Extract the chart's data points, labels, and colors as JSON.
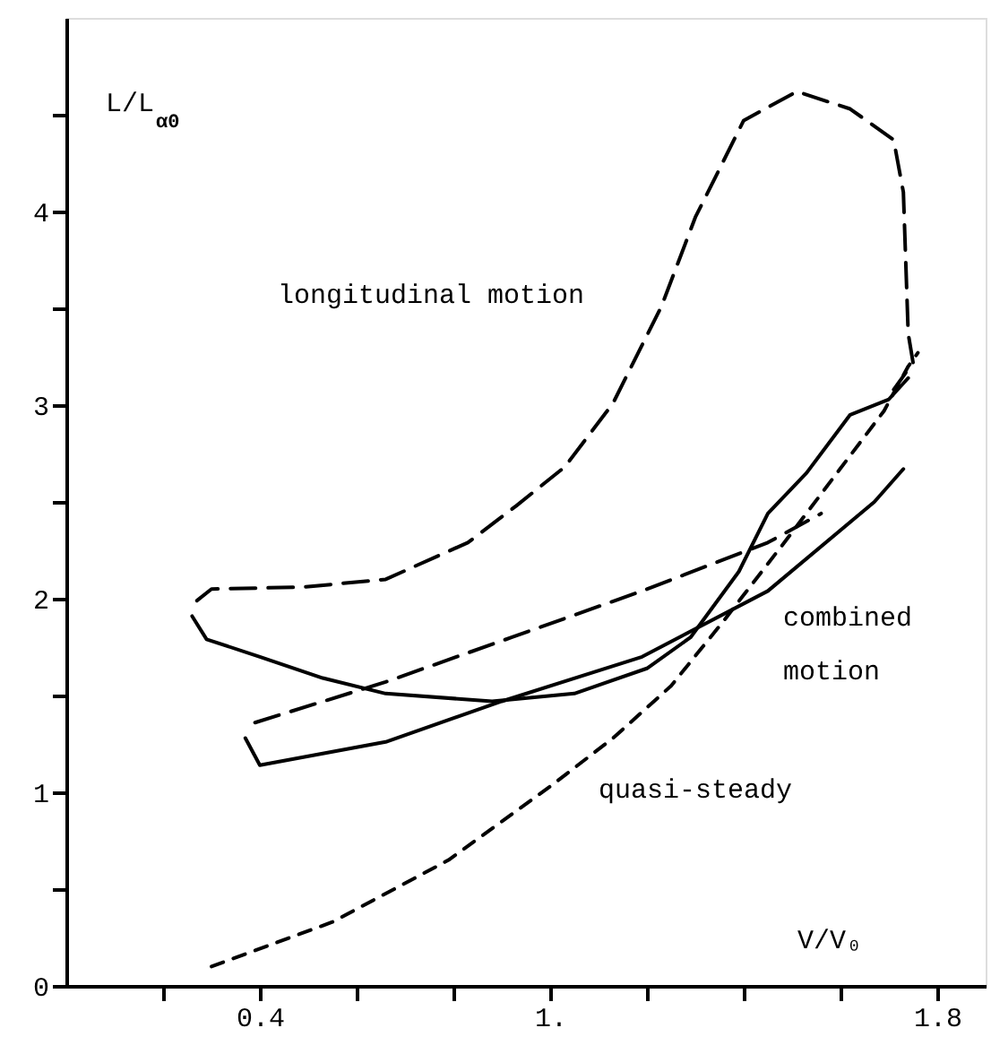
{
  "chart_data": {
    "type": "line",
    "xlabel": "V/V₀",
    "ylabel": "L/L$_{α0}$",
    "xlim": [
      0,
      1.9
    ],
    "ylim": [
      0,
      5.0
    ],
    "xticks": [
      {
        "value": 0.2,
        "label": null
      },
      0.4,
      {
        "value": 0.6,
        "label": null
      },
      {
        "value": 0.8,
        "label": null
      },
      {
        "value": 1.0,
        "label": "1."
      },
      {
        "value": 1.2,
        "label": null
      },
      {
        "value": 1.4,
        "label": null
      },
      {
        "value": 1.6,
        "label": null
      },
      1.8
    ],
    "yticks": [
      0,
      {
        "value": 0.5,
        "label": null
      },
      1,
      {
        "value": 1.5,
        "label": null
      },
      2,
      {
        "value": 2.5,
        "label": null
      },
      3,
      {
        "value": 3.5,
        "label": null
      },
      4,
      {
        "value": 4.5,
        "label": null
      }
    ],
    "grid": false,
    "series": [
      {
        "color": "#000000",
        "line_style": "dashed",
        "x": [
          0.27,
          0.3,
          0.49,
          0.66,
          0.83,
          0.93,
          1.03,
          1.13,
          1.23,
          1.3,
          1.4,
          1.51,
          1.62,
          1.71,
          1.73,
          1.74,
          1.75,
          1.71
        ],
        "values": [
          1.99,
          2.05,
          2.06,
          2.1,
          2.29,
          2.48,
          2.68,
          3.01,
          3.51,
          3.97,
          4.47,
          4.62,
          4.53,
          4.37,
          4.1,
          3.37,
          3.22,
          3.08
        ]
      },
      {
        "color": "#000000",
        "line_style": "dashed",
        "x": [
          0.39,
          0.66,
          0.92,
          1.19,
          1.45,
          1.56
        ],
        "values": [
          1.36,
          1.57,
          1.8,
          2.04,
          2.29,
          2.44
        ]
      },
      {
        "color": "#000000",
        "line_style": "dotted",
        "x": [
          0.3,
          0.55,
          0.79,
          1.0,
          1.13,
          1.25,
          1.36,
          1.49,
          1.69,
          1.74,
          1.76
        ],
        "values": [
          0.1,
          0.33,
          0.65,
          1.03,
          1.28,
          1.55,
          1.89,
          2.31,
          2.97,
          3.2,
          3.27
        ]
      },
      {
        "color": "#000000",
        "line_style": "solid",
        "x": [
          0.26,
          0.29,
          0.4,
          0.53,
          0.66,
          0.88,
          1.05,
          1.2,
          1.29,
          1.39,
          1.45,
          1.53,
          1.62,
          1.7,
          1.74
        ],
        "values": [
          1.91,
          1.79,
          1.7,
          1.59,
          1.51,
          1.47,
          1.51,
          1.64,
          1.8,
          2.14,
          2.44,
          2.65,
          2.95,
          3.03,
          3.14
        ]
      },
      {
        "color": "#000000",
        "line_style": "solid",
        "x": [
          0.37,
          0.4,
          0.66,
          0.9,
          1.19,
          1.45,
          1.67,
          1.73
        ],
        "values": [
          1.28,
          1.14,
          1.26,
          1.47,
          1.7,
          2.04,
          2.5,
          2.67
        ]
      }
    ],
    "annotations": [
      "longitudinal motion",
      "combined\nmotion",
      "quasi-steady"
    ]
  }
}
